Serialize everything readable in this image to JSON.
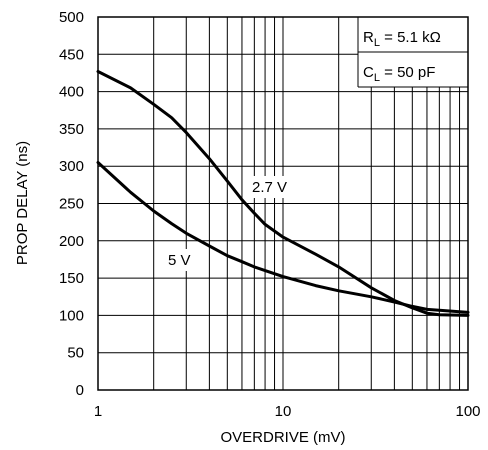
{
  "chart_data": {
    "type": "line",
    "xlabel": "OVERDRIVE (mV)",
    "ylabel": "PROP DELAY (ns)",
    "x_scale": "log",
    "xlim": [
      1,
      100
    ],
    "ylim": [
      0,
      500
    ],
    "x_ticks": [
      1,
      10,
      100
    ],
    "x_tick_labels": [
      "1",
      "10",
      "100"
    ],
    "y_ticks": [
      0,
      50,
      100,
      150,
      200,
      250,
      300,
      350,
      400,
      450,
      500
    ],
    "y_tick_labels": [
      "0",
      "50",
      "100",
      "150",
      "200",
      "250",
      "300",
      "350",
      "400",
      "450",
      "500"
    ],
    "grid": true,
    "annotations": {
      "r_main": "R",
      "r_sub": "L",
      "r_value": " = 5.1 kΩ",
      "c_main": "C",
      "c_sub": "L",
      "c_value": " = 50 pF"
    },
    "series": [
      {
        "name": "2.7 V",
        "x": [
          1,
          1.5,
          2,
          2.5,
          3,
          4,
          5,
          6,
          7,
          8,
          10,
          15,
          20,
          30,
          40,
          50,
          60,
          70,
          100
        ],
        "y": [
          427,
          405,
          383,
          365,
          345,
          310,
          280,
          255,
          237,
          222,
          205,
          182,
          165,
          137,
          120,
          110,
          103,
          101,
          100
        ]
      },
      {
        "name": "5 V",
        "x": [
          1,
          1.5,
          2,
          2.5,
          3,
          4,
          5,
          6,
          7,
          8,
          10,
          15,
          20,
          30,
          40,
          50,
          60,
          70,
          100
        ],
        "y": [
          305,
          265,
          240,
          223,
          210,
          193,
          180,
          172,
          165,
          160,
          152,
          140,
          133,
          125,
          118,
          112,
          108,
          107,
          104
        ]
      }
    ]
  }
}
